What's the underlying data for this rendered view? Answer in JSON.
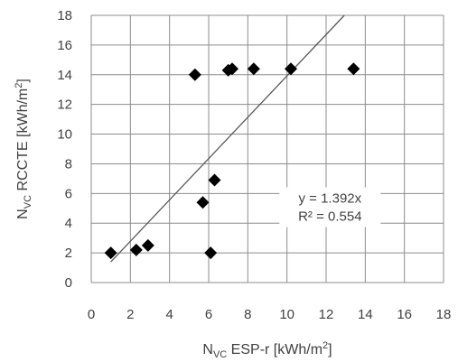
{
  "chart_data": {
    "type": "scatter",
    "xlabel": {
      "main": "N",
      "sub": "VC",
      "rest": " ESP-r [kWh/m",
      "sup": "2",
      "end": "]"
    },
    "ylabel": {
      "main": "N",
      "sub": "VC",
      "rest": " RCCTE [kWh/m",
      "sup": "2",
      "end": "]"
    },
    "xlim": [
      0,
      18
    ],
    "ylim": [
      0,
      18
    ],
    "xticks": [
      0,
      2,
      4,
      6,
      8,
      10,
      12,
      14,
      16,
      18
    ],
    "yticks": [
      0,
      2,
      4,
      6,
      8,
      10,
      12,
      14,
      16,
      18
    ],
    "grid": true,
    "marker": "diamond",
    "marker_color": "#000000",
    "trendline_color": "#595959",
    "points": [
      {
        "x": 1.0,
        "y": 2.0
      },
      {
        "x": 2.3,
        "y": 2.2
      },
      {
        "x": 2.9,
        "y": 2.5
      },
      {
        "x": 5.3,
        "y": 14.0
      },
      {
        "x": 5.7,
        "y": 5.4
      },
      {
        "x": 6.1,
        "y": 2.0
      },
      {
        "x": 6.3,
        "y": 6.9
      },
      {
        "x": 7.0,
        "y": 14.3
      },
      {
        "x": 7.2,
        "y": 14.4
      },
      {
        "x": 8.3,
        "y": 14.4
      },
      {
        "x": 10.2,
        "y": 14.4
      },
      {
        "x": 13.4,
        "y": 14.4
      }
    ],
    "trendline": {
      "slope": 1.392,
      "intercept": 0,
      "x_start": 1.0
    },
    "annotation": {
      "line1": "y = 1.392x",
      "line2": "R² = 0.554",
      "x": 12.2,
      "y": 5.2
    }
  }
}
